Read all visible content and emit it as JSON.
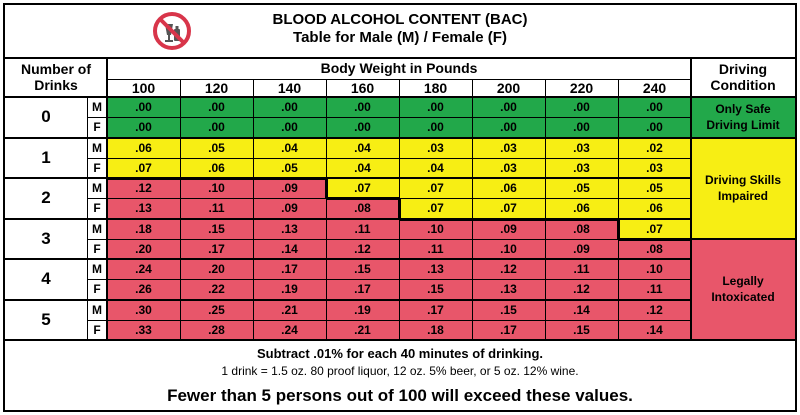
{
  "header": {
    "icon": "no-drinking-icon",
    "title": "BLOOD ALCOHOL CONTENT (BAC)",
    "subtitle": "Table for Male (M) / Female (F)"
  },
  "columns": {
    "drinks_header_line1": "Number of",
    "drinks_header_line2": "Drinks",
    "weight_header": "Body Weight in Pounds",
    "weights": [
      "100",
      "120",
      "140",
      "160",
      "180",
      "200",
      "220",
      "240"
    ],
    "condition_header_line1": "Driving",
    "condition_header_line2": "Condition"
  },
  "rows": [
    {
      "drinks": "0",
      "sex": "M",
      "values": [
        ".00",
        ".00",
        ".00",
        ".00",
        ".00",
        ".00",
        ".00",
        ".00"
      ]
    },
    {
      "drinks": "0",
      "sex": "F",
      "values": [
        ".00",
        ".00",
        ".00",
        ".00",
        ".00",
        ".00",
        ".00",
        ".00"
      ]
    },
    {
      "drinks": "1",
      "sex": "M",
      "values": [
        ".06",
        ".05",
        ".04",
        ".04",
        ".03",
        ".03",
        ".03",
        ".02"
      ]
    },
    {
      "drinks": "1",
      "sex": "F",
      "values": [
        ".07",
        ".06",
        ".05",
        ".04",
        ".04",
        ".03",
        ".03",
        ".03"
      ]
    },
    {
      "drinks": "2",
      "sex": "M",
      "values": [
        ".12",
        ".10",
        ".09",
        ".07",
        ".07",
        ".06",
        ".05",
        ".05"
      ]
    },
    {
      "drinks": "2",
      "sex": "F",
      "values": [
        ".13",
        ".11",
        ".09",
        ".08",
        ".07",
        ".07",
        ".06",
        ".06"
      ]
    },
    {
      "drinks": "3",
      "sex": "M",
      "values": [
        ".18",
        ".15",
        ".13",
        ".11",
        ".10",
        ".09",
        ".08",
        ".07"
      ]
    },
    {
      "drinks": "3",
      "sex": "F",
      "values": [
        ".20",
        ".17",
        ".14",
        ".12",
        ".11",
        ".10",
        ".09",
        ".08"
      ]
    },
    {
      "drinks": "4",
      "sex": "M",
      "values": [
        ".24",
        ".20",
        ".17",
        ".15",
        ".13",
        ".12",
        ".11",
        ".10"
      ]
    },
    {
      "drinks": "4",
      "sex": "F",
      "values": [
        ".26",
        ".22",
        ".19",
        ".17",
        ".15",
        ".13",
        ".12",
        ".11"
      ]
    },
    {
      "drinks": "5",
      "sex": "M",
      "values": [
        ".30",
        ".25",
        ".21",
        ".19",
        ".17",
        ".15",
        ".14",
        ".12"
      ]
    },
    {
      "drinks": "5",
      "sex": "F",
      "values": [
        ".33",
        ".28",
        ".24",
        ".21",
        ".18",
        ".17",
        ".15",
        ".14"
      ]
    }
  ],
  "conditions": [
    {
      "label": "Only Safe Driving Limit",
      "color": "#22a84a"
    },
    {
      "label": "Driving Skills Impaired",
      "color": "#f7ee14"
    },
    {
      "label": "Legally Intoxicated",
      "color": "#e8566a"
    }
  ],
  "cell_levels": [
    [
      "safe",
      "safe",
      "safe",
      "safe",
      "safe",
      "safe",
      "safe",
      "safe"
    ],
    [
      "safe",
      "safe",
      "safe",
      "safe",
      "safe",
      "safe",
      "safe",
      "safe"
    ],
    [
      "impaired",
      "impaired",
      "impaired",
      "impaired",
      "impaired",
      "impaired",
      "impaired",
      "impaired"
    ],
    [
      "impaired",
      "impaired",
      "impaired",
      "impaired",
      "impaired",
      "impaired",
      "impaired",
      "impaired"
    ],
    [
      "intox",
      "intox",
      "intox",
      "impaired",
      "impaired",
      "impaired",
      "impaired",
      "impaired"
    ],
    [
      "intox",
      "intox",
      "intox",
      "intox",
      "impaired",
      "impaired",
      "impaired",
      "impaired"
    ],
    [
      "intox",
      "intox",
      "intox",
      "intox",
      "intox",
      "intox",
      "intox",
      "impaired"
    ],
    [
      "intox",
      "intox",
      "intox",
      "intox",
      "intox",
      "intox",
      "intox",
      "intox"
    ],
    [
      "intox",
      "intox",
      "intox",
      "intox",
      "intox",
      "intox",
      "intox",
      "intox"
    ],
    [
      "intox",
      "intox",
      "intox",
      "intox",
      "intox",
      "intox",
      "intox",
      "intox"
    ],
    [
      "intox",
      "intox",
      "intox",
      "intox",
      "intox",
      "intox",
      "intox",
      "intox"
    ],
    [
      "intox",
      "intox",
      "intox",
      "intox",
      "intox",
      "intox",
      "intox",
      "intox"
    ]
  ],
  "footer": {
    "line1": "Subtract .01% for each 40 minutes of drinking.",
    "line2": "1 drink = 1.5 oz. 80 proof liquor, 12 oz. 5% beer, or 5 oz. 12% wine.",
    "line3": "Fewer than 5 persons out of 100 will exceed these values."
  }
}
